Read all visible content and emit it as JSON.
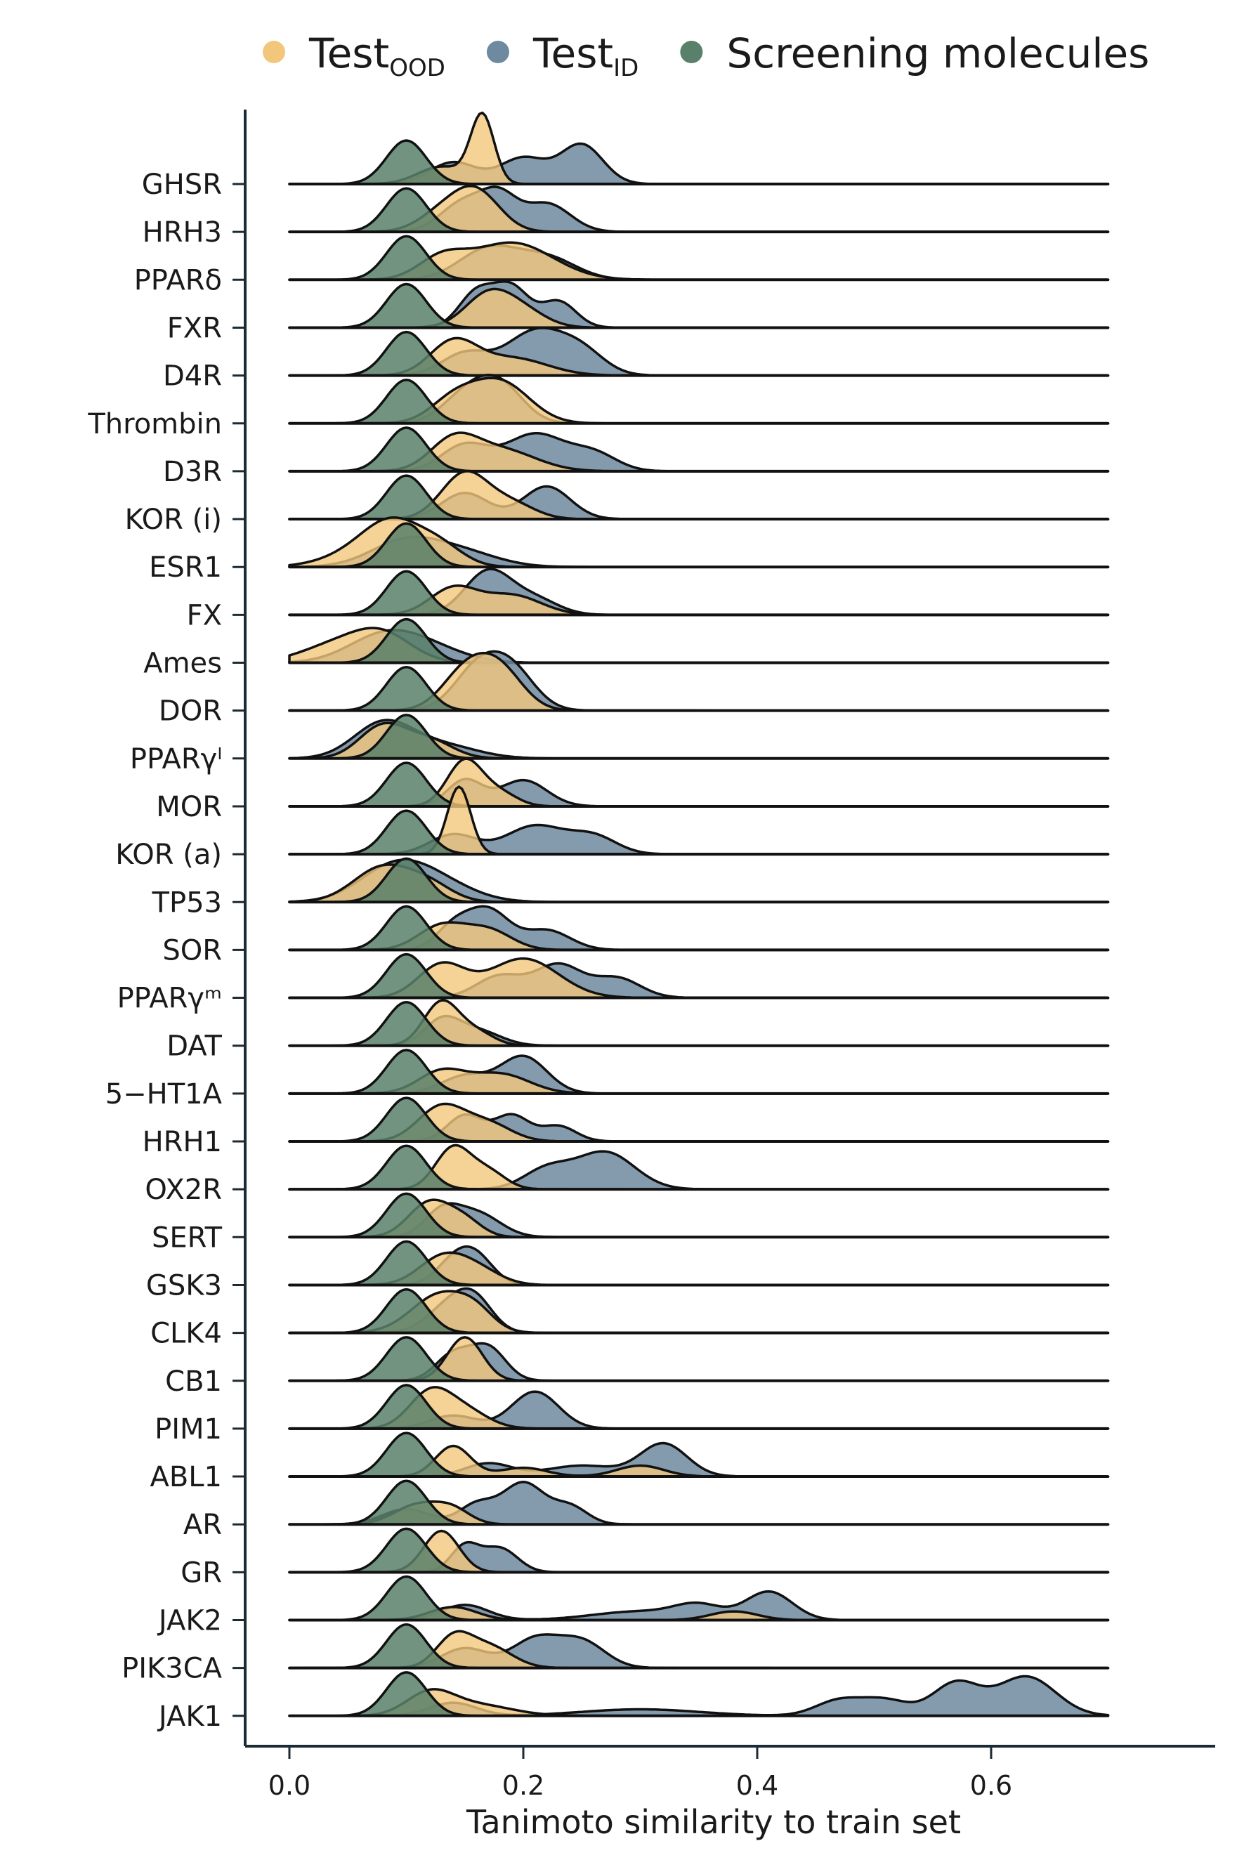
{
  "chart_data": {
    "type": "ridgeline",
    "xlabel": "Tanimoto similarity to train set",
    "ylabel": "",
    "xlim": [
      -0.06,
      0.8
    ],
    "xticks": [
      0.0,
      0.2,
      0.4,
      0.6
    ],
    "xtick_labels": [
      "0.0",
      "0.2",
      "0.4",
      "0.6"
    ],
    "grid": false,
    "legend_position": "top",
    "legend": [
      {
        "key": "ood",
        "main": "Test",
        "sub": "OOD",
        "color": "#F2C77C"
      },
      {
        "key": "id",
        "main": "Test",
        "sub": "ID",
        "color": "#6E8AA0"
      },
      {
        "key": "screen",
        "main": "Screening molecules",
        "sub": "",
        "color": "#58806A"
      }
    ],
    "categories": [
      "GHSR",
      "HRH3",
      "PPARδ",
      "FXR",
      "D4R",
      "Thrombin",
      "D3R",
      "KOR (i)",
      "ESR1",
      "FX",
      "Ames",
      "DOR",
      "PPARγˡ",
      "MOR",
      "KOR (a)",
      "TP53",
      "SOR",
      "PPARγᵐ",
      "DAT",
      "5−HT1A",
      "HRH1",
      "OX2R",
      "SERT",
      "GSK3",
      "CLK4",
      "CB1",
      "PIM1",
      "ABL1",
      "AR",
      "GR",
      "JAK2",
      "PIK3CA",
      "JAK1"
    ],
    "x_range": [
      0.0,
      0.7
    ],
    "series": {
      "screen": {
        "peak_x": 0.1,
        "spread": 0.017
      },
      "id": {
        "GHSR": [
          [
            0.14,
            0.5,
            0.02
          ],
          [
            0.2,
            0.6,
            0.02
          ],
          [
            0.25,
            0.9,
            0.018
          ]
        ],
        "HRH3": [
          [
            0.15,
            0.7,
            0.02
          ],
          [
            0.18,
            0.7,
            0.015
          ],
          [
            0.22,
            0.65,
            0.02
          ]
        ],
        "PPARδ": [
          [
            0.17,
            0.7,
            0.025
          ],
          [
            0.22,
            0.5,
            0.025
          ]
        ],
        "FXR": [
          [
            0.16,
            0.8,
            0.015
          ],
          [
            0.19,
            0.9,
            0.015
          ],
          [
            0.23,
            0.6,
            0.015
          ]
        ],
        "D4R": [
          [
            0.15,
            0.5,
            0.02
          ],
          [
            0.21,
            1.0,
            0.025
          ],
          [
            0.25,
            0.5,
            0.02
          ]
        ],
        "Thrombin": [
          [
            0.15,
            0.6,
            0.02
          ],
          [
            0.18,
            0.85,
            0.02
          ]
        ],
        "D3R": [
          [
            0.15,
            0.6,
            0.02
          ],
          [
            0.21,
            0.85,
            0.025
          ],
          [
            0.26,
            0.4,
            0.02
          ]
        ],
        "KOR (i)": [
          [
            0.15,
            0.6,
            0.02
          ],
          [
            0.22,
            0.75,
            0.02
          ]
        ],
        "ESR1": [
          [
            0.1,
            0.6,
            0.03
          ],
          [
            0.15,
            0.3,
            0.03
          ]
        ],
        "FX": [
          [
            0.17,
            1.0,
            0.02
          ],
          [
            0.21,
            0.35,
            0.02
          ]
        ],
        "Ames": [
          [
            0.08,
            0.6,
            0.03
          ],
          [
            0.12,
            0.3,
            0.03
          ]
        ],
        "DOR": [
          [
            0.16,
            0.9,
            0.02
          ],
          [
            0.19,
            0.9,
            0.02
          ]
        ],
        "PPARγˡ": [
          [
            0.08,
            0.8,
            0.025
          ],
          [
            0.13,
            0.3,
            0.03
          ]
        ],
        "MOR": [
          [
            0.15,
            0.6,
            0.015
          ],
          [
            0.2,
            0.6,
            0.02
          ]
        ],
        "KOR (a)": [
          [
            0.14,
            0.45,
            0.02
          ],
          [
            0.21,
            0.65,
            0.025
          ],
          [
            0.26,
            0.4,
            0.02
          ]
        ],
        "TP53": [
          [
            0.09,
            0.8,
            0.03
          ],
          [
            0.13,
            0.35,
            0.03
          ]
        ],
        "SOR": [
          [
            0.14,
            0.5,
            0.015
          ],
          [
            0.17,
            0.9,
            0.018
          ],
          [
            0.22,
            0.45,
            0.02
          ]
        ],
        "PPARγᵐ": [
          [
            0.18,
            0.5,
            0.02
          ],
          [
            0.23,
            0.75,
            0.02
          ],
          [
            0.28,
            0.45,
            0.02
          ]
        ],
        "DAT": [
          [
            0.13,
            0.55,
            0.015
          ],
          [
            0.16,
            0.35,
            0.02
          ]
        ],
        "5−HT1A": [
          [
            0.15,
            0.4,
            0.02
          ],
          [
            0.2,
            0.85,
            0.02
          ]
        ],
        "HRH1": [
          [
            0.15,
            0.6,
            0.015
          ],
          [
            0.19,
            0.6,
            0.015
          ],
          [
            0.23,
            0.35,
            0.015
          ]
        ],
        "OX2R": [
          [
            0.22,
            0.45,
            0.02
          ],
          [
            0.27,
            0.85,
            0.025
          ]
        ],
        "SERT": [
          [
            0.13,
            0.55,
            0.015
          ],
          [
            0.16,
            0.55,
            0.02
          ]
        ],
        "GSK3": [
          [
            0.14,
            0.5,
            0.015
          ],
          [
            0.16,
            0.6,
            0.015
          ]
        ],
        "CLK4": [
          [
            0.14,
            0.7,
            0.02
          ],
          [
            0.16,
            0.5,
            0.015
          ]
        ],
        "CB1": [
          [
            0.14,
            0.6,
            0.015
          ],
          [
            0.17,
            0.75,
            0.015
          ]
        ],
        "PIM1": [
          [
            0.14,
            0.3,
            0.02
          ],
          [
            0.21,
            0.85,
            0.02
          ]
        ],
        "ABL1": [
          [
            0.17,
            0.3,
            0.02
          ],
          [
            0.25,
            0.25,
            0.03
          ],
          [
            0.32,
            0.75,
            0.02
          ]
        ],
        "AR": [
          [
            0.1,
            0.35,
            0.02
          ],
          [
            0.16,
            0.45,
            0.015
          ],
          [
            0.2,
            0.95,
            0.018
          ],
          [
            0.24,
            0.4,
            0.015
          ]
        ],
        "GR": [
          [
            0.15,
            0.6,
            0.012
          ],
          [
            0.18,
            0.55,
            0.015
          ]
        ],
        "JAK2": [
          [
            0.15,
            0.35,
            0.02
          ],
          [
            0.3,
            0.2,
            0.04
          ],
          [
            0.35,
            0.3,
            0.02
          ],
          [
            0.41,
            0.65,
            0.02
          ]
        ],
        "PIK3CA": [
          [
            0.15,
            0.45,
            0.02
          ],
          [
            0.21,
            0.65,
            0.02
          ],
          [
            0.25,
            0.6,
            0.02
          ]
        ],
        "JAK1": [
          [
            0.14,
            0.3,
            0.02
          ],
          [
            0.3,
            0.15,
            0.05
          ],
          [
            0.47,
            0.35,
            0.02
          ],
          [
            0.51,
            0.35,
            0.02
          ],
          [
            0.57,
            0.75,
            0.02
          ],
          [
            0.63,
            0.9,
            0.025
          ]
        ]
      },
      "ood": {
        "GHSR": [
          [
            0.13,
            0.4,
            0.02
          ],
          [
            0.165,
            1.55,
            0.01
          ]
        ],
        "HRH3": [
          [
            0.13,
            0.4,
            0.02
          ],
          [
            0.16,
            0.9,
            0.02
          ]
        ],
        "PPARδ": [
          [
            0.13,
            0.45,
            0.02
          ],
          [
            0.19,
            0.85,
            0.035
          ]
        ],
        "FXR": [
          [
            0.17,
            0.75,
            0.02
          ],
          [
            0.2,
            0.35,
            0.02
          ]
        ],
        "D4R": [
          [
            0.14,
            0.75,
            0.02
          ],
          [
            0.19,
            0.4,
            0.03
          ]
        ],
        "Thrombin": [
          [
            0.14,
            0.5,
            0.02
          ],
          [
            0.18,
            0.95,
            0.025
          ]
        ],
        "D3R": [
          [
            0.14,
            0.65,
            0.02
          ],
          [
            0.18,
            0.5,
            0.03
          ]
        ],
        "KOR (i)": [
          [
            0.15,
            1.05,
            0.02
          ],
          [
            0.19,
            0.35,
            0.02
          ]
        ],
        "ESR1": [
          [
            0.06,
            0.3,
            0.03
          ],
          [
            0.09,
            0.9,
            0.025
          ],
          [
            0.13,
            0.4,
            0.02
          ]
        ],
        "FX": [
          [
            0.14,
            0.6,
            0.02
          ],
          [
            0.19,
            0.45,
            0.025
          ]
        ],
        "Ames": [
          [
            0.04,
            0.4,
            0.03
          ],
          [
            0.08,
            0.6,
            0.025
          ]
        ],
        "DOR": [
          [
            0.15,
            0.85,
            0.02
          ],
          [
            0.18,
            0.9,
            0.02
          ]
        ],
        "PPARγˡ": [
          [
            0.08,
            0.75,
            0.02
          ],
          [
            0.12,
            0.4,
            0.02
          ]
        ],
        "MOR": [
          [
            0.15,
            1.05,
            0.015
          ],
          [
            0.18,
            0.3,
            0.015
          ]
        ],
        "KOR (a)": [
          [
            0.145,
            1.55,
            0.01
          ]
        ],
        "TP53": [
          [
            0.08,
            0.8,
            0.025
          ],
          [
            0.12,
            0.35,
            0.02
          ]
        ],
        "SOR": [
          [
            0.13,
            0.55,
            0.02
          ],
          [
            0.17,
            0.45,
            0.02
          ]
        ],
        "PPARγᵐ": [
          [
            0.13,
            0.75,
            0.02
          ],
          [
            0.2,
            0.9,
            0.03
          ]
        ],
        "DAT": [
          [
            0.13,
            1.0,
            0.015
          ],
          [
            0.16,
            0.3,
            0.015
          ]
        ],
        "5−HT1A": [
          [
            0.13,
            0.5,
            0.02
          ],
          [
            0.18,
            0.45,
            0.025
          ]
        ],
        "HRH1": [
          [
            0.13,
            0.8,
            0.02
          ],
          [
            0.17,
            0.4,
            0.02
          ]
        ],
        "OX2R": [
          [
            0.14,
            0.95,
            0.015
          ],
          [
            0.17,
            0.4,
            0.015
          ]
        ],
        "SERT": [
          [
            0.12,
            0.8,
            0.018
          ],
          [
            0.15,
            0.35,
            0.015
          ]
        ],
        "GSK3": [
          [
            0.13,
            0.6,
            0.02
          ],
          [
            0.16,
            0.35,
            0.02
          ]
        ],
        "CLK4": [
          [
            0.13,
            0.9,
            0.025
          ],
          [
            0.16,
            0.3,
            0.015
          ]
        ],
        "CB1": [
          [
            0.15,
            1.0,
            0.015
          ]
        ],
        "PIM1": [
          [
            0.12,
            0.8,
            0.018
          ],
          [
            0.15,
            0.4,
            0.02
          ]
        ],
        "ABL1": [
          [
            0.14,
            0.7,
            0.015
          ],
          [
            0.2,
            0.2,
            0.02
          ],
          [
            0.3,
            0.25,
            0.02
          ]
        ],
        "AR": [
          [
            0.11,
            0.45,
            0.02
          ],
          [
            0.14,
            0.3,
            0.015
          ]
        ],
        "GR": [
          [
            0.13,
            0.95,
            0.015
          ]
        ],
        "JAK2": [
          [
            0.14,
            0.3,
            0.02
          ],
          [
            0.38,
            0.2,
            0.02
          ]
        ],
        "PIK3CA": [
          [
            0.14,
            0.65,
            0.015
          ],
          [
            0.17,
            0.5,
            0.02
          ]
        ],
        "JAK1": [
          [
            0.12,
            0.5,
            0.02
          ],
          [
            0.16,
            0.25,
            0.03
          ]
        ]
      }
    }
  }
}
